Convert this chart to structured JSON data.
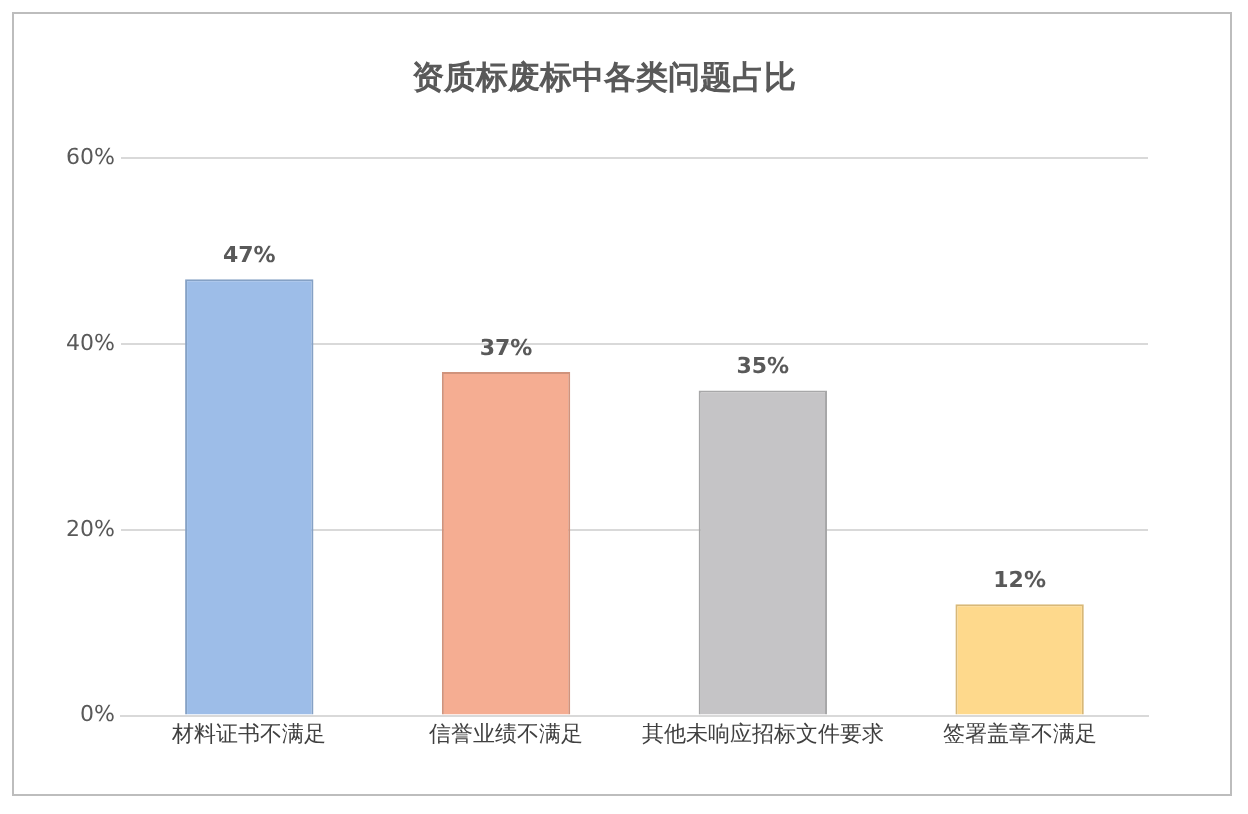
{
  "chart_data": {
    "type": "bar",
    "title": "资质标废标中各类问题占比",
    "categories": [
      "材料证书不满足",
      "信誉业绩不满足",
      "其他未响应招标文件要求",
      "签署盖章不满足"
    ],
    "values": [
      47,
      37,
      35,
      12
    ],
    "colors": [
      "#9dbde8",
      "#f5ad92",
      "#c5c4c6",
      "#fed98c"
    ],
    "value_labels": [
      "47%",
      "37%",
      "35%",
      "12%"
    ],
    "ylim": [
      0,
      60
    ],
    "yticks": [
      {
        "value": 0,
        "label": "0%"
      },
      {
        "value": 20,
        "label": "20%"
      },
      {
        "value": 40,
        "label": "40%"
      },
      {
        "value": 60,
        "label": "60%"
      }
    ],
    "grid": "y",
    "legend": false
  }
}
